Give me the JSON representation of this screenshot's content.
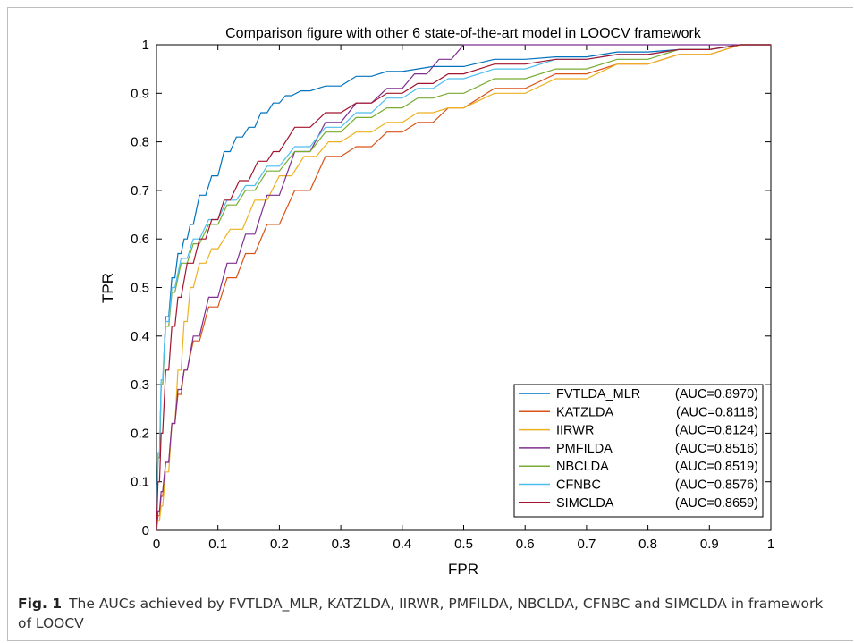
{
  "caption": {
    "label": "Fig. 1",
    "text": "The AUCs achieved by FVTLDA_MLR, KATZLDA, IIRWR, PMFILDA, NBCLDA, CFNBC and SIMCLDA in framework of LOOCV"
  },
  "chart_data": {
    "type": "line",
    "title": "Comparison figure with other 6 state-of-the-art model in LOOCV framework",
    "xlabel": "FPR",
    "ylabel": "TPR",
    "xlim": [
      0,
      1
    ],
    "ylim": [
      0,
      1
    ],
    "xticks": [
      "0",
      "0.1",
      "0.2",
      "0.3",
      "0.4",
      "0.5",
      "0.6",
      "0.7",
      "0.8",
      "0.9",
      "1"
    ],
    "yticks": [
      "0",
      "0.1",
      "0.2",
      "0.3",
      "0.4",
      "0.5",
      "0.6",
      "0.7",
      "0.8",
      "0.9",
      "1"
    ],
    "grid": false,
    "legend_position": "bottom-right",
    "series": [
      {
        "name": "FVTLDA_MLR",
        "auc_label": "(AUC=0.8970)",
        "color": "#0072bd",
        "x": [
          0,
          0.005,
          0.01,
          0.02,
          0.03,
          0.04,
          0.05,
          0.06,
          0.08,
          0.1,
          0.12,
          0.14,
          0.16,
          0.18,
          0.2,
          0.22,
          0.25,
          0.3,
          0.35,
          0.4,
          0.5,
          0.6,
          0.7,
          0.8,
          0.9,
          1.0
        ],
        "y": [
          0,
          0.15,
          0.3,
          0.44,
          0.52,
          0.57,
          0.6,
          0.63,
          0.69,
          0.73,
          0.78,
          0.81,
          0.83,
          0.86,
          0.88,
          0.895,
          0.905,
          0.915,
          0.935,
          0.945,
          0.955,
          0.97,
          0.975,
          0.985,
          0.99,
          1.0
        ]
      },
      {
        "name": "KATZLDA",
        "auc_label": "(AUC=0.8118)",
        "color": "#d95319",
        "x": [
          0,
          0.005,
          0.01,
          0.02,
          0.03,
          0.04,
          0.05,
          0.07,
          0.1,
          0.13,
          0.16,
          0.2,
          0.25,
          0.3,
          0.35,
          0.4,
          0.45,
          0.5,
          0.6,
          0.7,
          0.8,
          0.9,
          1.0
        ],
        "y": [
          0,
          0.03,
          0.07,
          0.14,
          0.22,
          0.28,
          0.33,
          0.39,
          0.46,
          0.52,
          0.57,
          0.63,
          0.7,
          0.77,
          0.79,
          0.82,
          0.84,
          0.87,
          0.91,
          0.94,
          0.96,
          0.98,
          1.0
        ]
      },
      {
        "name": "IIRWR",
        "auc_label": "(AUC=0.8124)",
        "color": "#edb120",
        "x": [
          0,
          0.005,
          0.01,
          0.02,
          0.03,
          0.04,
          0.05,
          0.06,
          0.08,
          0.1,
          0.14,
          0.18,
          0.22,
          0.26,
          0.3,
          0.35,
          0.4,
          0.45,
          0.5,
          0.6,
          0.7,
          0.8,
          0.9,
          1.0
        ],
        "y": [
          0,
          0.02,
          0.05,
          0.12,
          0.22,
          0.33,
          0.43,
          0.5,
          0.55,
          0.58,
          0.62,
          0.68,
          0.73,
          0.77,
          0.8,
          0.82,
          0.84,
          0.86,
          0.87,
          0.9,
          0.93,
          0.96,
          0.98,
          1.0
        ]
      },
      {
        "name": "PMFILDA",
        "auc_label": "(AUC=0.8516)",
        "color": "#7e2f8e",
        "x": [
          0,
          0.005,
          0.01,
          0.02,
          0.03,
          0.04,
          0.05,
          0.07,
          0.1,
          0.13,
          0.16,
          0.2,
          0.25,
          0.3,
          0.35,
          0.4,
          0.44,
          0.48,
          0.52,
          0.55,
          0.6,
          0.7,
          0.8,
          0.9,
          1.0
        ],
        "y": [
          0,
          0.04,
          0.08,
          0.14,
          0.22,
          0.29,
          0.33,
          0.4,
          0.48,
          0.55,
          0.61,
          0.69,
          0.78,
          0.84,
          0.88,
          0.91,
          0.94,
          0.97,
          1.0,
          1.0,
          1.0,
          1.0,
          1.0,
          1.0,
          1.0
        ]
      },
      {
        "name": "NBCLDA",
        "auc_label": "(AUC=0.8519)",
        "color": "#77ac30",
        "x": [
          0,
          0.005,
          0.01,
          0.02,
          0.03,
          0.05,
          0.07,
          0.1,
          0.13,
          0.16,
          0.2,
          0.25,
          0.3,
          0.35,
          0.4,
          0.45,
          0.5,
          0.6,
          0.7,
          0.8,
          0.9,
          1.0
        ],
        "y": [
          0,
          0.15,
          0.3,
          0.42,
          0.49,
          0.55,
          0.59,
          0.63,
          0.67,
          0.7,
          0.74,
          0.78,
          0.82,
          0.85,
          0.87,
          0.89,
          0.9,
          0.93,
          0.95,
          0.97,
          0.99,
          1.0
        ]
      },
      {
        "name": "CFNBC",
        "auc_label": "(AUC=0.8576)",
        "color": "#4dbeee",
        "x": [
          0,
          0.005,
          0.01,
          0.02,
          0.03,
          0.05,
          0.07,
          0.1,
          0.13,
          0.16,
          0.2,
          0.25,
          0.3,
          0.35,
          0.4,
          0.45,
          0.5,
          0.6,
          0.7,
          0.8,
          0.9,
          1.0
        ],
        "y": [
          0,
          0.16,
          0.31,
          0.43,
          0.5,
          0.56,
          0.6,
          0.64,
          0.68,
          0.71,
          0.75,
          0.79,
          0.83,
          0.86,
          0.89,
          0.91,
          0.93,
          0.95,
          0.97,
          0.98,
          0.99,
          1.0
        ]
      },
      {
        "name": "SIMCLDA",
        "auc_label": "(AUC=0.8659)",
        "color": "#a2142f",
        "x": [
          0,
          0.005,
          0.01,
          0.02,
          0.03,
          0.04,
          0.06,
          0.08,
          0.1,
          0.12,
          0.15,
          0.18,
          0.2,
          0.25,
          0.3,
          0.35,
          0.4,
          0.45,
          0.5,
          0.6,
          0.7,
          0.8,
          0.9,
          1.0
        ],
        "y": [
          0,
          0.1,
          0.2,
          0.33,
          0.42,
          0.48,
          0.55,
          0.6,
          0.64,
          0.68,
          0.72,
          0.76,
          0.78,
          0.83,
          0.86,
          0.88,
          0.9,
          0.92,
          0.94,
          0.96,
          0.97,
          0.98,
          0.99,
          1.0
        ]
      }
    ]
  }
}
